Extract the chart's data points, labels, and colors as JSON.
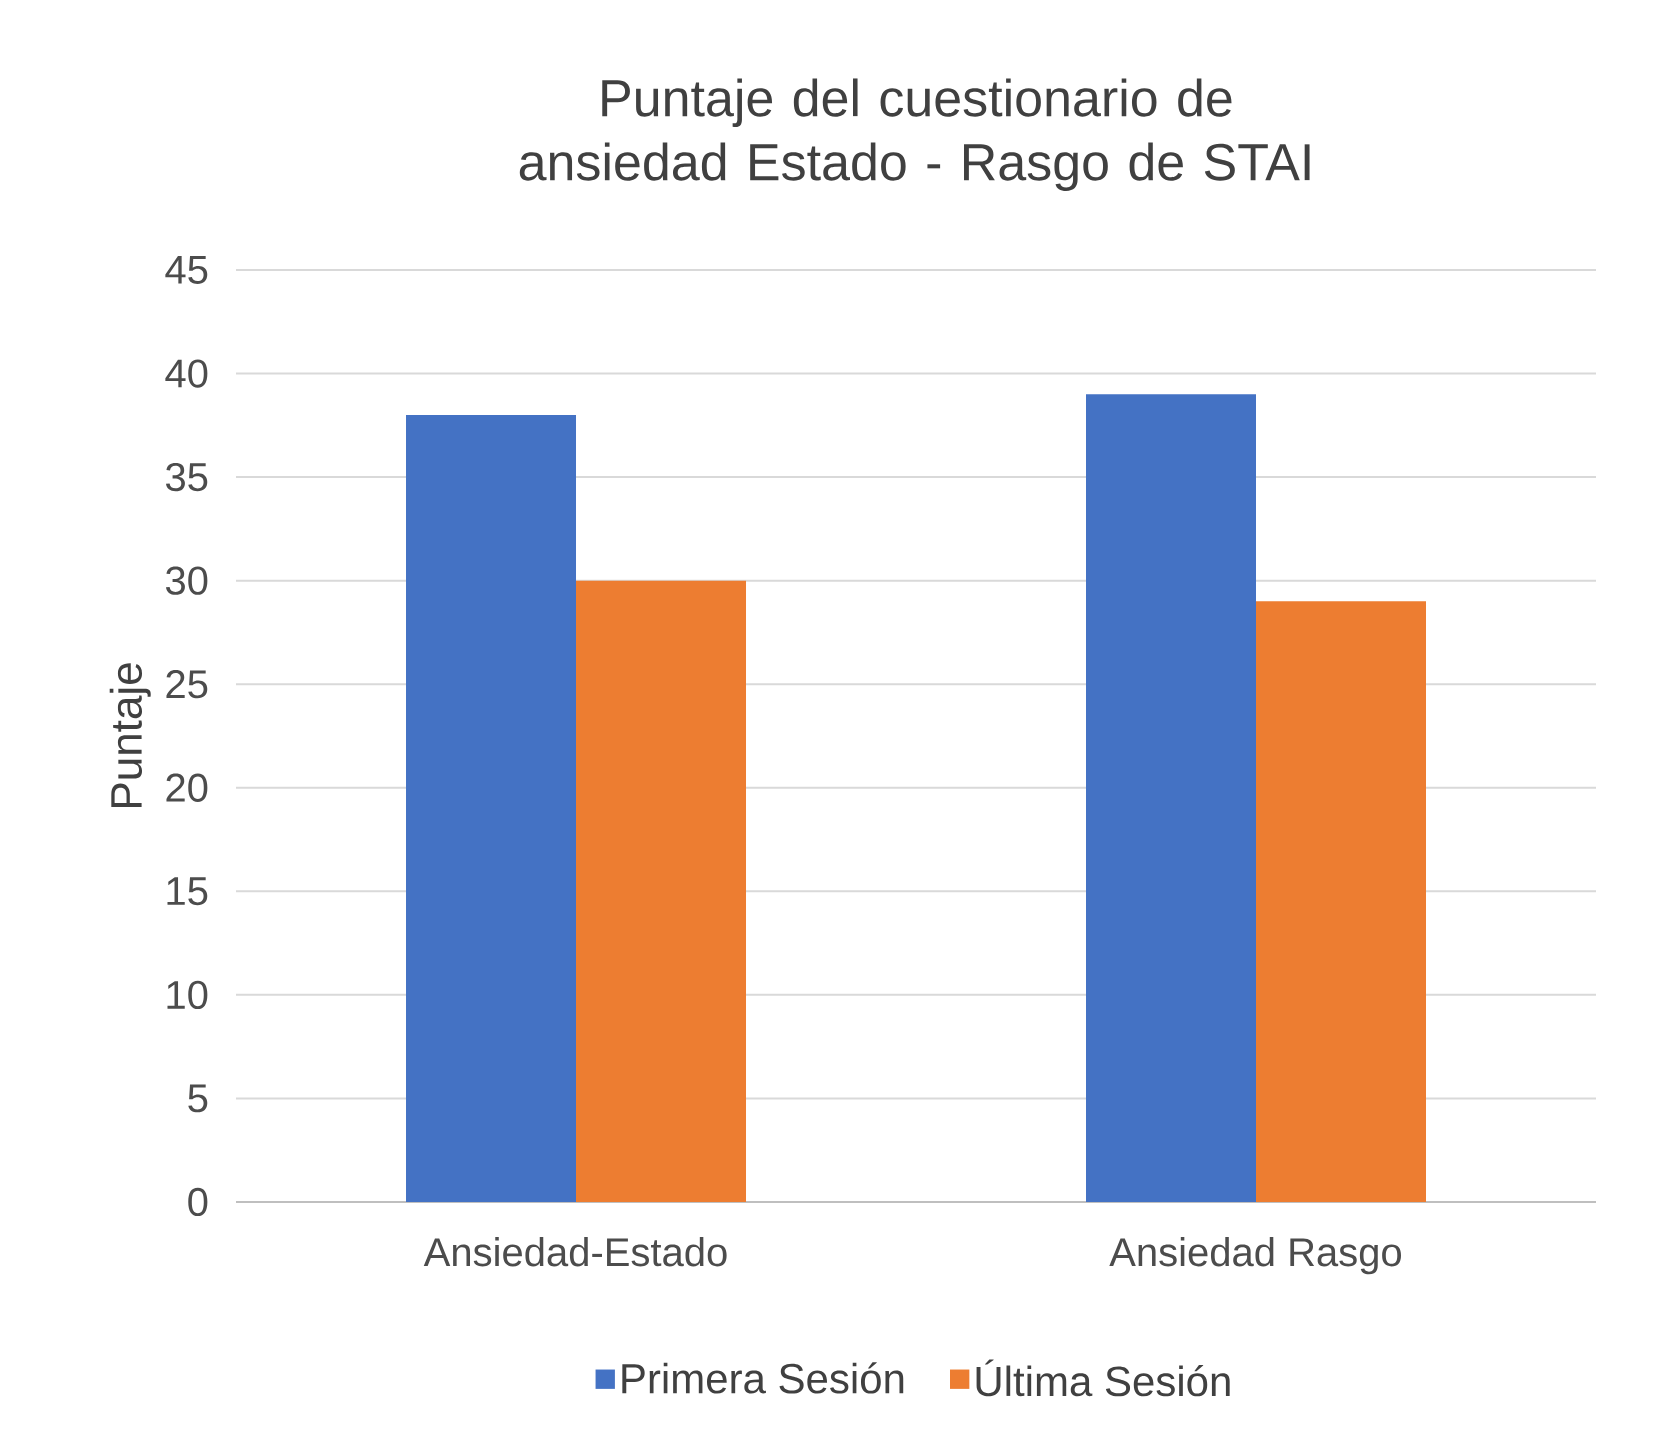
{
  "chart_data": {
    "type": "bar",
    "title": "Puntaje del cuestionario de ansiedad Estado - Rasgo de STAI",
    "ylabel": "Puntaje",
    "categories": [
      "Ansiedad-Estado",
      "Ansiedad Rasgo"
    ],
    "series": [
      {
        "name": "Primera Sesión",
        "color": "#4472c4",
        "values": [
          38,
          39
        ]
      },
      {
        "name": "Última Sesión",
        "color": "#ed7d31",
        "values": [
          30,
          29
        ]
      }
    ],
    "ylim": [
      0,
      45
    ],
    "yticks": [
      0,
      5,
      10,
      15,
      20,
      25,
      30,
      35,
      40,
      45
    ],
    "grid": "y",
    "legend": "bottom"
  }
}
